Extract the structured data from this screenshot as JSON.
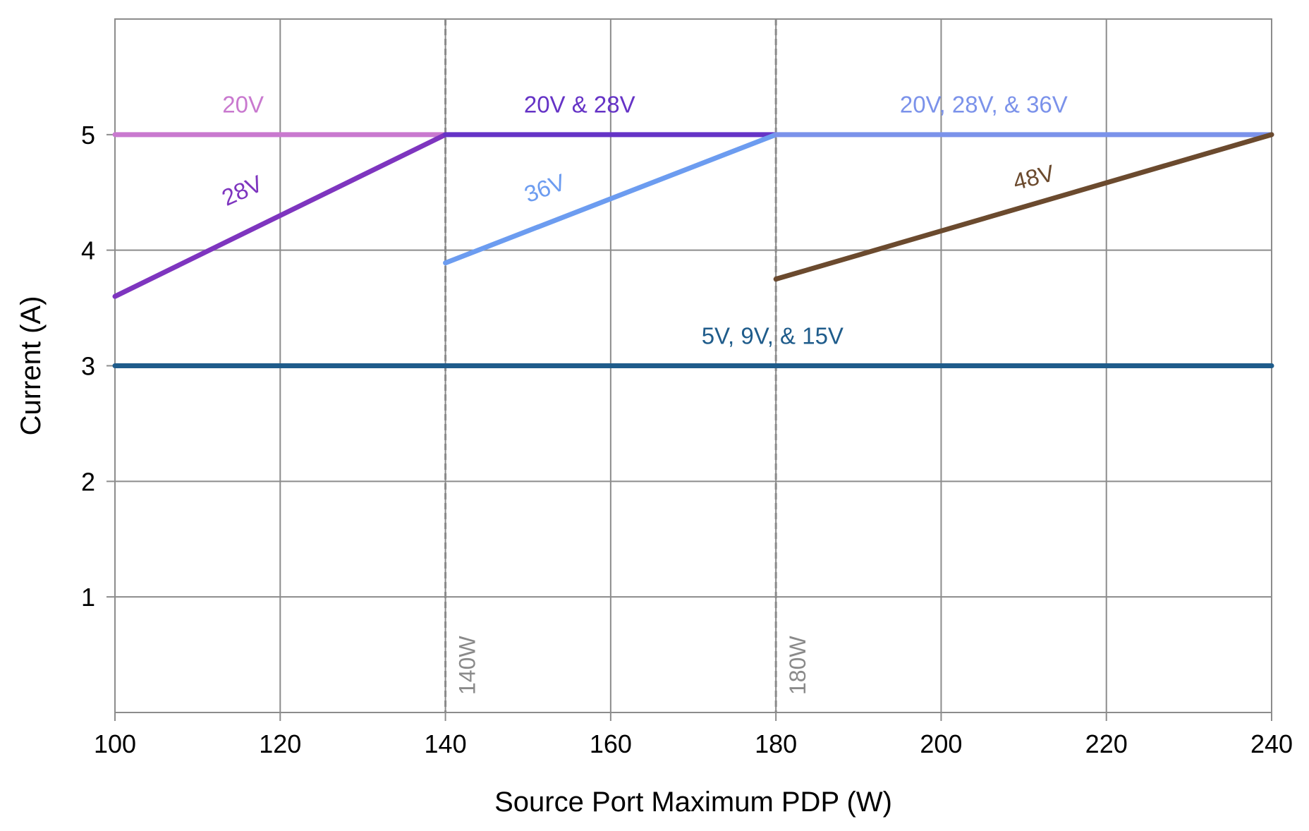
{
  "chart_data": {
    "type": "line",
    "title": "",
    "xlabel": "Source Port Maximum PDP (W)",
    "ylabel": "Current (A)",
    "xlim": [
      100,
      240
    ],
    "ylim": [
      0,
      6
    ],
    "x_ticks": [
      100,
      120,
      140,
      160,
      180,
      200,
      220,
      240
    ],
    "y_ticks": [
      1,
      2,
      3,
      4,
      5
    ],
    "grid": true,
    "legend": "none",
    "series": [
      {
        "name": "20V",
        "color": "#c979cf",
        "points": [
          [
            100,
            5
          ],
          [
            140,
            5
          ]
        ],
        "label_at": [
          113,
          5.19
        ],
        "label_angle": 0
      },
      {
        "name": "28V",
        "color": "#7e35bf",
        "points": [
          [
            100,
            3.6
          ],
          [
            140,
            5
          ]
        ],
        "label_at": [
          113.5,
          4.38
        ],
        "label_angle": -24
      },
      {
        "name": "20V & 28V",
        "color": "#6533c6",
        "points": [
          [
            140,
            5
          ],
          [
            180,
            5
          ]
        ],
        "label_at": [
          149.5,
          5.19
        ],
        "label_angle": 0
      },
      {
        "name": "36V",
        "color": "#6c9cf0",
        "points": [
          [
            140,
            3.89
          ],
          [
            180,
            5
          ]
        ],
        "label_at": [
          150,
          4.41
        ],
        "label_angle": -20
      },
      {
        "name": "20V, 28V, & 36V",
        "color": "#7b92ea",
        "points": [
          [
            180,
            5
          ],
          [
            240,
            5
          ]
        ],
        "label_at": [
          195,
          5.19
        ],
        "label_angle": 0
      },
      {
        "name": "48V",
        "color": "#6b4a2e",
        "points": [
          [
            180,
            3.75
          ],
          [
            240,
            5
          ]
        ],
        "label_at": [
          209,
          4.52
        ],
        "label_angle": -14
      },
      {
        "name": "5V, 9V, & 15V",
        "color": "#1f5c8b",
        "points": [
          [
            100,
            3
          ],
          [
            240,
            3
          ]
        ],
        "label_at": [
          171,
          3.19
        ],
        "label_angle": 0
      }
    ],
    "reference_lines": [
      {
        "x": 140,
        "label": "140W",
        "color": "#8a8a8a"
      },
      {
        "x": 180,
        "label": "180W",
        "color": "#8a8a8a"
      }
    ]
  }
}
